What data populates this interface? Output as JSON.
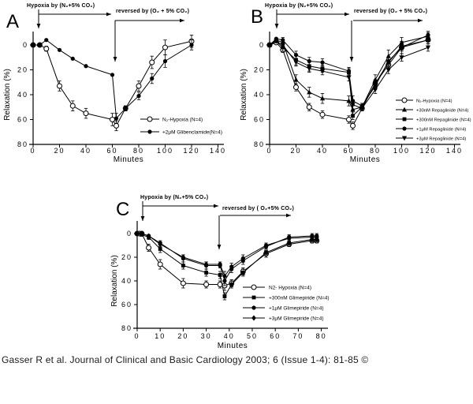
{
  "figure": {
    "citation": "Gasser R et al. Journal of Clinical and Basic Cardiology 2003; 6 (Issue 1-4): 81-85 ©"
  },
  "chart_data": [
    {
      "panel": "A",
      "type": "line",
      "xlabel": "Minutes",
      "ylabel": "Relaxation (%)",
      "x_ticks": [
        0,
        20,
        40,
        60,
        80,
        100,
        120,
        140
      ],
      "y_ticks": [
        0,
        20,
        40,
        60,
        80
      ],
      "xlim": [
        0,
        145
      ],
      "ylim": [
        -10,
        80
      ],
      "y_inverted": true,
      "grid": false,
      "legend_position": "inside-right",
      "annotations": {
        "hypoxia": {
          "label": "Hypoxia by (N₂+5% CO₂)",
          "x_min": 4
        },
        "reversal": {
          "label": "reversed by (O₂ + 5% CO₂)",
          "x_min": 62
        }
      },
      "series": [
        {
          "name": "N₂-Hypoxia (N=4)",
          "marker": "open-circle",
          "points": [
            [
              0,
              0,
              0
            ],
            [
              5,
              0,
              0
            ],
            [
              10,
              3,
              2
            ],
            [
              20,
              33,
              4
            ],
            [
              30,
              49,
              4
            ],
            [
              40,
              55,
              4
            ],
            [
              60,
              60,
              5
            ],
            [
              63,
              65,
              4
            ],
            [
              70,
              51,
              2
            ],
            [
              80,
              33,
              4
            ],
            [
              90,
              14,
              5
            ],
            [
              100,
              2,
              6
            ],
            [
              120,
              -3,
              5
            ]
          ]
        },
        {
          "name": "+2μM Glibenclamide(N=4)",
          "marker": "filled-circle",
          "points": [
            [
              0,
              0,
              0
            ],
            [
              5,
              0,
              0
            ],
            [
              10,
              -4,
              0
            ],
            [
              20,
              4,
              0
            ],
            [
              30,
              11,
              0
            ],
            [
              40,
              17,
              0
            ],
            [
              60,
              24,
              0
            ],
            [
              63,
              59,
              4
            ],
            [
              70,
              51,
              2
            ],
            [
              80,
              41,
              3
            ],
            [
              90,
              27,
              4
            ],
            [
              100,
              13,
              5
            ],
            [
              120,
              0,
              4
            ]
          ]
        }
      ]
    },
    {
      "panel": "B",
      "type": "line",
      "xlabel": "Minutes",
      "ylabel": "Relaxation (%)",
      "x_ticks": [
        0,
        20,
        40,
        60,
        80,
        100,
        120,
        140
      ],
      "y_ticks": [
        0,
        20,
        40,
        60,
        80
      ],
      "xlim": [
        0,
        145
      ],
      "ylim": [
        -10,
        80
      ],
      "y_inverted": true,
      "grid": false,
      "legend_position": "inside-right",
      "annotations": {
        "hypoxia": {
          "label": "Hypoxia by (N₂+5% CO₂)",
          "x_min": 4
        },
        "reversal": {
          "label": "reversed by (O₂ + 5% CO₂)",
          "x_min": 62
        }
      },
      "series": [
        {
          "name": "N₂-Hypoxia (N=4)",
          "marker": "open-circle",
          "points": [
            [
              0,
              0,
              0
            ],
            [
              5,
              -2,
              0
            ],
            [
              10,
              4,
              2
            ],
            [
              20,
              34,
              3
            ],
            [
              30,
              50,
              3
            ],
            [
              40,
              56,
              3
            ],
            [
              60,
              60,
              3
            ],
            [
              63,
              65,
              3
            ],
            [
              70,
              51,
              2
            ],
            [
              80,
              31,
              3
            ],
            [
              90,
              16,
              4
            ],
            [
              100,
              2,
              5
            ],
            [
              120,
              -4,
              3
            ]
          ]
        },
        {
          "name": "+30nM Repaglinide (N=4)",
          "marker": "triangle-up",
          "points": [
            [
              0,
              0,
              0
            ],
            [
              5,
              -4,
              0
            ],
            [
              10,
              -2,
              2
            ],
            [
              20,
              28,
              4
            ],
            [
              30,
              38,
              4
            ],
            [
              40,
              43,
              4
            ],
            [
              60,
              45,
              4
            ],
            [
              63,
              52,
              4
            ],
            [
              70,
              50,
              3
            ],
            [
              80,
              28,
              4
            ],
            [
              90,
              9,
              5
            ],
            [
              100,
              -2,
              4
            ],
            [
              120,
              -7,
              3
            ]
          ]
        },
        {
          "name": "+300nM Repaglinide (N=4)",
          "marker": "filled-square",
          "points": [
            [
              0,
              0,
              0
            ],
            [
              5,
              -3,
              0
            ],
            [
              10,
              2,
              3
            ],
            [
              20,
              12,
              4
            ],
            [
              30,
              17,
              4
            ],
            [
              40,
              19,
              3
            ],
            [
              60,
              22,
              3
            ],
            [
              63,
              57,
              3
            ],
            [
              70,
              50,
              2
            ],
            [
              80,
              31,
              3
            ],
            [
              90,
              14,
              4
            ],
            [
              100,
              1,
              3
            ],
            [
              120,
              -4,
              3
            ]
          ]
        },
        {
          "name": "+1μM Repaglinide (N=4)",
          "marker": "filled-circle",
          "points": [
            [
              0,
              0,
              0
            ],
            [
              5,
              -5,
              0
            ],
            [
              10,
              -4,
              2
            ],
            [
              20,
              8,
              3
            ],
            [
              30,
              13,
              3
            ],
            [
              40,
              14,
              3
            ],
            [
              60,
              21,
              3
            ],
            [
              63,
              45,
              4
            ],
            [
              70,
              49,
              2
            ],
            [
              80,
              33,
              3
            ],
            [
              90,
              13,
              3
            ],
            [
              100,
              2,
              3
            ],
            [
              120,
              -8,
              3
            ]
          ]
        },
        {
          "name": "+3μM Repaglinide (N=4)",
          "marker": "triangle-down",
          "points": [
            [
              0,
              0,
              0
            ],
            [
              5,
              -3,
              0
            ],
            [
              10,
              0,
              2
            ],
            [
              20,
              14,
              3
            ],
            [
              30,
              19,
              3
            ],
            [
              40,
              21,
              3
            ],
            [
              60,
              26,
              3
            ],
            [
              63,
              48,
              4
            ],
            [
              70,
              51,
              2
            ],
            [
              80,
              36,
              3
            ],
            [
              90,
              20,
              3
            ],
            [
              100,
              10,
              3
            ],
            [
              120,
              2,
              3
            ]
          ]
        }
      ]
    },
    {
      "panel": "C",
      "type": "line",
      "xlabel": "Minutes",
      "ylabel": "Relaxation (%)",
      "x_ticks": [
        0,
        10,
        20,
        30,
        40,
        50,
        60,
        70,
        80
      ],
      "y_ticks": [
        0,
        20,
        40,
        60,
        80
      ],
      "xlim": [
        0,
        82
      ],
      "ylim": [
        -10,
        80
      ],
      "y_inverted": true,
      "grid": false,
      "legend_position": "inside-right",
      "annotations": {
        "hypoxia": {
          "label": "Hypoxia by (N₂+5% CO₂)",
          "x_min": 2.5
        },
        "reversal": {
          "label": "reversed by ( O₂+5% CO₂)",
          "x_min": 36
        }
      },
      "series": [
        {
          "name": "N2- Hypoxia (N=4)",
          "marker": "open-circle",
          "points": [
            [
              0,
              0,
              0
            ],
            [
              1,
              0,
              0
            ],
            [
              2,
              0,
              0
            ],
            [
              5,
              12,
              3
            ],
            [
              10,
              26,
              4
            ],
            [
              20,
              42,
              4
            ],
            [
              30,
              43,
              3
            ],
            [
              36,
              43,
              3
            ],
            [
              38,
              44,
              4
            ],
            [
              41,
              42,
              3
            ],
            [
              46,
              32,
              3
            ],
            [
              56,
              17,
              3
            ],
            [
              66,
              9,
              2
            ],
            [
              76,
              6,
              2
            ],
            [
              78,
              6,
              2
            ]
          ]
        },
        {
          "name": "+300nM Glimepiride (N=4)",
          "marker": "filled-square",
          "points": [
            [
              0,
              0,
              0
            ],
            [
              2,
              1,
              0
            ],
            [
              5,
              3,
              2
            ],
            [
              10,
              13,
              3
            ],
            [
              20,
              27,
              3
            ],
            [
              30,
              33,
              3
            ],
            [
              36,
              35,
              3
            ],
            [
              38,
              53,
              3
            ],
            [
              41,
              43,
              3
            ],
            [
              46,
              33,
              3
            ],
            [
              56,
              16,
              2
            ],
            [
              66,
              8,
              2
            ],
            [
              76,
              5,
              2
            ],
            [
              78,
              5,
              2
            ]
          ]
        },
        {
          "name": "+1μM Glimepiride (N=4)",
          "marker": "filled-circle",
          "points": [
            [
              0,
              0,
              0
            ],
            [
              2,
              0,
              0
            ],
            [
              5,
              2,
              0
            ],
            [
              10,
              8,
              2
            ],
            [
              20,
              21,
              3
            ],
            [
              30,
              27,
              3
            ],
            [
              36,
              27,
              2
            ],
            [
              38,
              40,
              4
            ],
            [
              41,
              30,
              3
            ],
            [
              46,
              23,
              3
            ],
            [
              56,
              11,
              2
            ],
            [
              66,
              3,
              2
            ],
            [
              76,
              2,
              2
            ],
            [
              78,
              2,
              2
            ]
          ]
        },
        {
          "name": "+3μM Glimepiride (N=4)",
          "marker": "diamond",
          "points": [
            [
              0,
              0,
              0
            ],
            [
              2,
              0,
              0
            ],
            [
              5,
              2,
              0
            ],
            [
              10,
              9,
              2
            ],
            [
              20,
              20,
              2
            ],
            [
              30,
              26,
              2
            ],
            [
              36,
              26,
              2
            ],
            [
              38,
              36,
              4
            ],
            [
              41,
              28,
              3
            ],
            [
              46,
              21,
              3
            ],
            [
              56,
              10,
              2
            ],
            [
              66,
              4,
              2
            ],
            [
              76,
              3,
              2
            ],
            [
              78,
              3,
              2
            ]
          ]
        }
      ]
    }
  ]
}
